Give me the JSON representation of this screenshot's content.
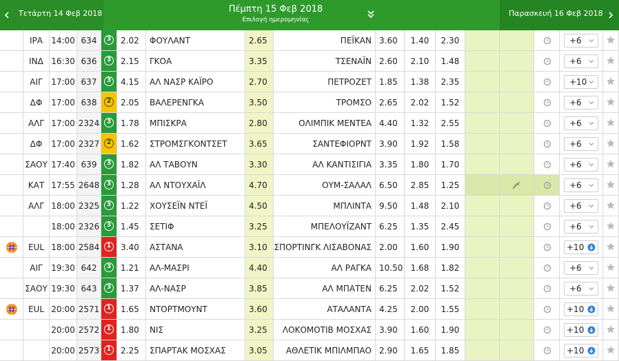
{
  "header": {
    "prev": "Τετάρτη 14 Φεβ 2018",
    "current": "Πέμπτη 15 Φεβ 2018",
    "subtitle": "Επιλογή ημερομηνίας",
    "next": "Παρασκευή 16 Φεβ 2018"
  },
  "table": {
    "rows": [
      {
        "league": "ΙΡΑ",
        "time": "14:00",
        "code": "634",
        "badge": "3",
        "odd1": "2.02",
        "home": "ΦΟΥΛΑΝΤ",
        "oddx": "2.65",
        "away": "ΠΕΪΚΑΝ",
        "odd2": "3.60",
        "dc1x": "1.40",
        "dcx2": "2.30",
        "more": "+6",
        "more_style": "dropdown",
        "logo": false,
        "muted": false
      },
      {
        "league": "ΙΝΔ",
        "time": "16:30",
        "code": "636",
        "badge": "3",
        "odd1": "2.15",
        "home": "ΓΚΟΑ",
        "oddx": "3.35",
        "away": "ΤΣΕΝΑΪΝ",
        "odd2": "2.60",
        "dc1x": "2.10",
        "dcx2": "1.48",
        "more": "+6",
        "more_style": "dropdown",
        "logo": false,
        "muted": false
      },
      {
        "league": "ΑΙΓ",
        "time": "17:00",
        "code": "637",
        "badge": "3",
        "odd1": "4.15",
        "home": "ΑΛ ΝΑΣΡ ΚΑΪΡΟ",
        "oddx": "2.70",
        "away": "ΠΕΤΡΟΖΕΤ",
        "odd2": "1.85",
        "dc1x": "1.38",
        "dcx2": "2.35",
        "more": "+10",
        "more_style": "dropdown",
        "logo": false,
        "muted": false
      },
      {
        "league": "ΔΦ",
        "time": "17:00",
        "code": "638",
        "badge": "2",
        "odd1": "2.05",
        "home": "ΒΑΛΕΡΕΝΓΚΑ",
        "oddx": "3.50",
        "away": "ΤΡΟΜΣΟ",
        "odd2": "2.65",
        "dc1x": "2.02",
        "dcx2": "1.52",
        "more": "+6",
        "more_style": "dropdown",
        "logo": false,
        "muted": false
      },
      {
        "league": "ΑΛΓ",
        "time": "17:00",
        "code": "2324",
        "badge": "3",
        "odd1": "1.78",
        "home": "ΜΠΙΣΚΡΑ",
        "oddx": "2.80",
        "away": "ΟΛΙΜΠΙΚ ΜΕΝΤΕΑ",
        "odd2": "4.40",
        "dc1x": "1.32",
        "dcx2": "2.55",
        "more": "+6",
        "more_style": "dropdown",
        "logo": false,
        "muted": false
      },
      {
        "league": "ΔΦ",
        "time": "17:00",
        "code": "2327",
        "badge": "2",
        "odd1": "1.62",
        "home": "ΣΤΡΟΜΣΓΚΟΝΤΣΕΤ",
        "oddx": "3.65",
        "away": "ΣΑΝΤΕΦΙΟΡΝΤ",
        "odd2": "3.90",
        "dc1x": "1.92",
        "dcx2": "1.58",
        "more": "+6",
        "more_style": "dropdown",
        "logo": false,
        "muted": false
      },
      {
        "league": "ΣΑΟΥ",
        "time": "17:40",
        "code": "639",
        "badge": "3",
        "odd1": "1.82",
        "home": "ΑΛ ΤΑΒΟΥΝ",
        "oddx": "3.30",
        "away": "ΑΛ ΚΑΝΤΙΣΙΓΙΑ",
        "odd2": "3.35",
        "dc1x": "1.80",
        "dcx2": "1.70",
        "more": "+6",
        "more_style": "dropdown",
        "logo": false,
        "muted": false
      },
      {
        "league": "ΚΑΤ",
        "time": "17:55",
        "code": "2648",
        "badge": "3",
        "odd1": "1.28",
        "home": "ΑΛ ΝΤΟΥΧΑΪΛ",
        "oddx": "4.70",
        "away": "ΟΥΜ-ΣΑΛΑΛ",
        "odd2": "6.50",
        "dc1x": "2.85",
        "dcx2": "1.25",
        "more": "+6",
        "more_style": "dropdown",
        "logo": false,
        "muted": true
      },
      {
        "league": "ΑΛΓ",
        "time": "18:00",
        "code": "2325",
        "badge": "3",
        "odd1": "1.22",
        "home": "ΧΟΥΣΕΪΝ ΝΤΕΪ",
        "oddx": "4.50",
        "away": "ΜΠΛΙΝΤΑ",
        "odd2": "9.50",
        "dc1x": "1.48",
        "dcx2": "2.10",
        "more": "+6",
        "more_style": "dropdown",
        "logo": false,
        "muted": false
      },
      {
        "league": null,
        "time": "18:00",
        "code": "2326",
        "badge": "3",
        "odd1": "1.45",
        "home": "ΣΕΤΙΦ",
        "oddx": "3.25",
        "away": "ΜΠΕΛΟΥΪΖΑΝΤ",
        "odd2": "6.25",
        "dc1x": "1.35",
        "dcx2": "2.45",
        "more": "+6",
        "more_style": "dropdown",
        "logo": false,
        "muted": false
      },
      {
        "league": "EUL",
        "time": "18:00",
        "code": "2584",
        "badge": "1",
        "odd1": "3.40",
        "home": "ΑΣΤΑΝΑ",
        "oddx": "3.10",
        "away": "ΣΠΟΡΤΙΝΓΚ ΛΙΣΑΒΟΝΑΣ",
        "odd2": "2.00",
        "dc1x": "1.60",
        "dcx2": "1.90",
        "more": "+10",
        "more_style": "info",
        "logo": true,
        "muted": false
      },
      {
        "league": "ΑΙΓ",
        "time": "19:30",
        "code": "642",
        "badge": "3",
        "odd1": "1.21",
        "home": "ΑΛ-ΜΑΣΡΙ",
        "oddx": "4.40",
        "away": "ΑΛ ΡΑΓΚΑ",
        "odd2": "10.50",
        "dc1x": "1.68",
        "dcx2": "1.82",
        "more": "+6",
        "more_style": "dropdown",
        "logo": false,
        "muted": false
      },
      {
        "league": "ΣΑΟΥ",
        "time": "19:30",
        "code": "643",
        "badge": "3",
        "odd1": "1.37",
        "home": "ΑΛ-ΝΑΣΡ",
        "oddx": "3.85",
        "away": "ΑΛ ΜΠΑΤΕΝ",
        "odd2": "6.25",
        "dc1x": "2.02",
        "dcx2": "1.52",
        "more": "+6",
        "more_style": "dropdown",
        "logo": false,
        "muted": false
      },
      {
        "league": "EUL",
        "time": "20:00",
        "code": "2571",
        "badge": "1",
        "odd1": "1.65",
        "home": "ΝΤΟΡΤΜΟΥΝΤ",
        "oddx": "3.60",
        "away": "ΑΤΑΛΑΝΤΑ",
        "odd2": "4.25",
        "dc1x": "2.00",
        "dcx2": "1.55",
        "more": "+10",
        "more_style": "info",
        "logo": true,
        "muted": false
      },
      {
        "league": null,
        "time": "20:00",
        "code": "2572",
        "badge": "1",
        "odd1": "1.80",
        "home": "ΝΙΣ",
        "oddx": "3.25",
        "away": "ΛΟΚΟΜΟΤΙΒ ΜΟΣΧΑΣ",
        "odd2": "3.90",
        "dc1x": "1.60",
        "dcx2": "1.90",
        "more": "+10",
        "more_style": "info",
        "logo": false,
        "muted": false
      },
      {
        "league": null,
        "time": "20:00",
        "code": "2573",
        "badge": "1",
        "odd1": "2.25",
        "home": "ΣΠΑΡΤΑΚ ΜΟΣΧΑΣ",
        "oddx": "3.05",
        "away": "ΑΘΛΕΤΙΚ ΜΠΙΛΜΠΑΟ",
        "odd2": "2.90",
        "dc1x": "1.65",
        "dcx2": "1.85",
        "more": "+10",
        "more_style": "info",
        "logo": false,
        "muted": false
      }
    ]
  }
}
